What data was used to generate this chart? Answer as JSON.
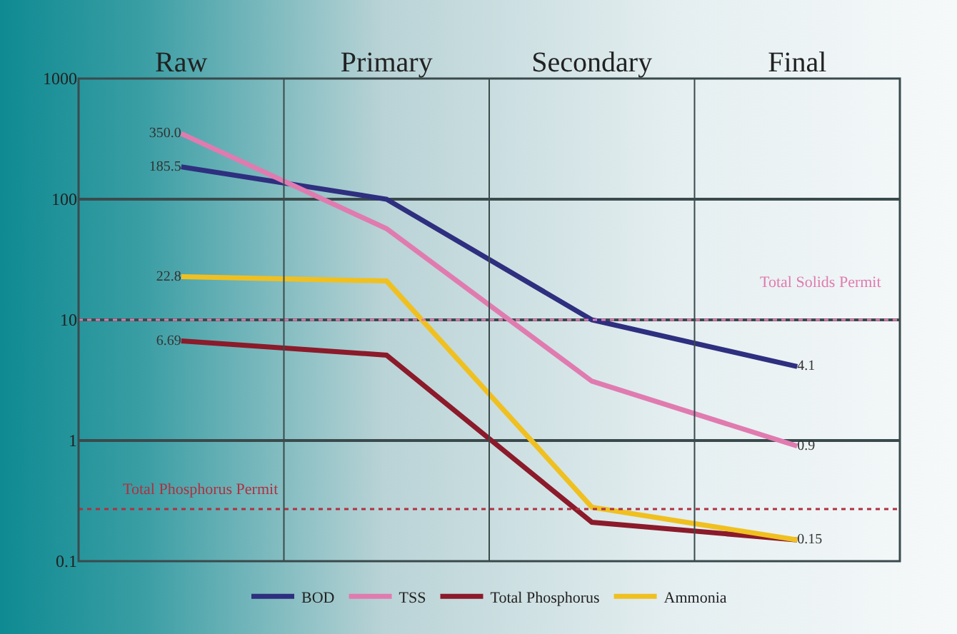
{
  "chart_data": {
    "type": "line",
    "categories": [
      "Raw",
      "Primary",
      "Secondary",
      "Final"
    ],
    "series": [
      {
        "name": "BOD",
        "color": "#2e2f7f",
        "values": [
          185.5,
          100,
          10,
          4.1
        ],
        "value_labels": [
          "185.5",
          null,
          null,
          "4.1"
        ]
      },
      {
        "name": "TSS",
        "color": "#e07bb0",
        "values": [
          350,
          57,
          3.1,
          0.9
        ],
        "value_labels": [
          "350.0",
          null,
          null,
          "0.9"
        ]
      },
      {
        "name": "Total Phosphorus",
        "color": "#8b1a2a",
        "values": [
          6.69,
          5.1,
          0.21,
          0.15
        ],
        "value_labels": [
          "6.69",
          null,
          null,
          null
        ]
      },
      {
        "name": "Ammonia",
        "color": "#f0c020",
        "values": [
          22.8,
          21,
          0.28,
          0.15
        ],
        "value_labels": [
          "22.8",
          null,
          null,
          "0.15"
        ]
      }
    ],
    "log": true,
    "ylim": [
      0.1,
      1000
    ],
    "yticks": [
      0.1,
      1,
      10,
      100,
      1000
    ],
    "ref_lines": [
      {
        "axis": "y",
        "value": 10,
        "label": "Total Solids Permit",
        "color": "#e07bb0",
        "line_style": "dotted"
      },
      {
        "axis": "y",
        "value": 0.27,
        "label": "Total Phosphorus Permit",
        "color": "#b03040",
        "line_style": "dotted"
      }
    ],
    "grid": true,
    "legend": "bottom",
    "marker": "none",
    "line_style": "solid"
  }
}
